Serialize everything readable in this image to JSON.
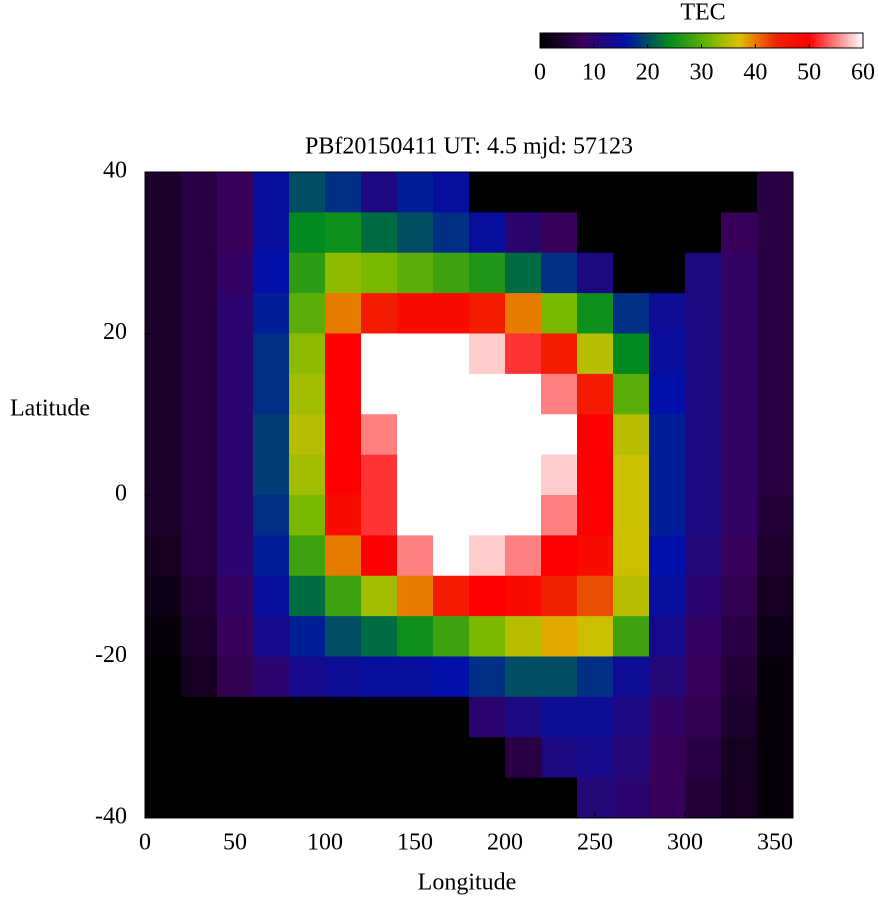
{
  "chart_data": {
    "type": "heatmap",
    "title": "PBf20150411  UT: 4.5  mjd: 57123",
    "xlabel": "Longitude",
    "ylabel": "Latitude",
    "colorbar_label": "TEC",
    "xlim": [
      0,
      360
    ],
    "xticks": [
      0,
      50,
      100,
      150,
      200,
      250,
      300,
      350
    ],
    "ylim": [
      -40,
      40
    ],
    "yticks": [
      -40,
      -20,
      0,
      20,
      40
    ],
    "zlim": [
      0,
      60
    ],
    "zticks": [
      0,
      10,
      20,
      30,
      40,
      50,
      60
    ],
    "colormap": [
      {
        "value": 0,
        "color": "#000000"
      },
      {
        "value": 8,
        "color": "#38005a"
      },
      {
        "value": 16,
        "color": "#0010a8"
      },
      {
        "value": 24,
        "color": "#008a20"
      },
      {
        "value": 32,
        "color": "#7ab800"
      },
      {
        "value": 37,
        "color": "#e0c000"
      },
      {
        "value": 44,
        "color": "#f02000"
      },
      {
        "value": 50,
        "color": "#ff0000"
      },
      {
        "value": 60,
        "color": "#ffffff"
      }
    ],
    "x": [
      10,
      30,
      50,
      70,
      90,
      110,
      130,
      150,
      170,
      190,
      210,
      230,
      250,
      270,
      290,
      310,
      330,
      350
    ],
    "y": [
      37.5,
      32.5,
      27.5,
      22.5,
      17.5,
      12.5,
      7.5,
      2.5,
      -2.5,
      -7.5,
      -12.5,
      -17.5,
      -22.5,
      -27.5,
      -32.5,
      -37.5
    ],
    "values": [
      [
        4,
        6,
        8,
        15,
        20,
        18,
        12,
        17,
        15,
        0,
        0,
        0,
        0,
        0,
        0,
        0,
        0,
        6
      ],
      [
        4,
        6,
        8,
        15,
        24,
        25,
        22,
        20,
        18,
        15,
        10,
        8,
        0,
        0,
        0,
        0,
        8,
        6
      ],
      [
        4,
        6,
        9,
        16,
        27,
        33,
        32,
        30,
        28,
        26,
        22,
        18,
        12,
        0,
        0,
        12,
        9,
        6
      ],
      [
        4,
        6,
        10,
        17,
        30,
        40,
        45,
        48,
        48,
        45,
        40,
        32,
        25,
        18,
        14,
        12,
        9,
        6
      ],
      [
        4,
        6,
        10,
        18,
        33,
        50,
        60,
        60,
        60,
        58,
        52,
        45,
        35,
        24,
        15,
        12,
        9,
        6
      ],
      [
        4,
        6,
        10,
        18,
        34,
        50,
        60,
        60,
        60,
        60,
        60,
        55,
        45,
        30,
        16,
        12,
        9,
        6
      ],
      [
        4,
        6,
        10,
        19,
        35,
        50,
        55,
        60,
        60,
        60,
        60,
        60,
        50,
        35,
        17,
        12,
        9,
        6
      ],
      [
        4,
        6,
        10,
        19,
        34,
        50,
        52,
        60,
        60,
        60,
        60,
        58,
        50,
        36,
        17,
        12,
        9,
        6
      ],
      [
        4,
        6,
        10,
        18,
        32,
        48,
        52,
        60,
        60,
        60,
        60,
        55,
        50,
        36,
        17,
        12,
        9,
        5
      ],
      [
        3,
        6,
        10,
        17,
        28,
        40,
        50,
        55,
        60,
        58,
        55,
        50,
        48,
        36,
        16,
        11,
        8,
        4
      ],
      [
        2,
        5,
        9,
        15,
        22,
        28,
        34,
        40,
        45,
        50,
        48,
        44,
        42,
        35,
        15,
        10,
        7,
        3
      ],
      [
        1,
        4,
        8,
        13,
        17,
        20,
        22,
        25,
        28,
        32,
        35,
        38,
        36,
        28,
        13,
        9,
        6,
        2
      ],
      [
        0,
        3,
        7,
        10,
        13,
        14,
        15,
        15,
        16,
        18,
        20,
        20,
        18,
        14,
        11,
        8,
        5,
        1
      ],
      [
        0,
        0,
        0,
        0,
        0,
        0,
        0,
        0,
        0,
        10,
        12,
        14,
        14,
        12,
        9,
        7,
        4,
        1
      ],
      [
        0,
        0,
        0,
        0,
        0,
        0,
        0,
        0,
        0,
        0,
        6,
        12,
        13,
        11,
        8,
        6,
        3,
        1
      ],
      [
        0,
        0,
        0,
        0,
        0,
        0,
        0,
        0,
        0,
        0,
        0,
        0,
        11,
        10,
        8,
        5,
        3,
        1
      ]
    ]
  }
}
